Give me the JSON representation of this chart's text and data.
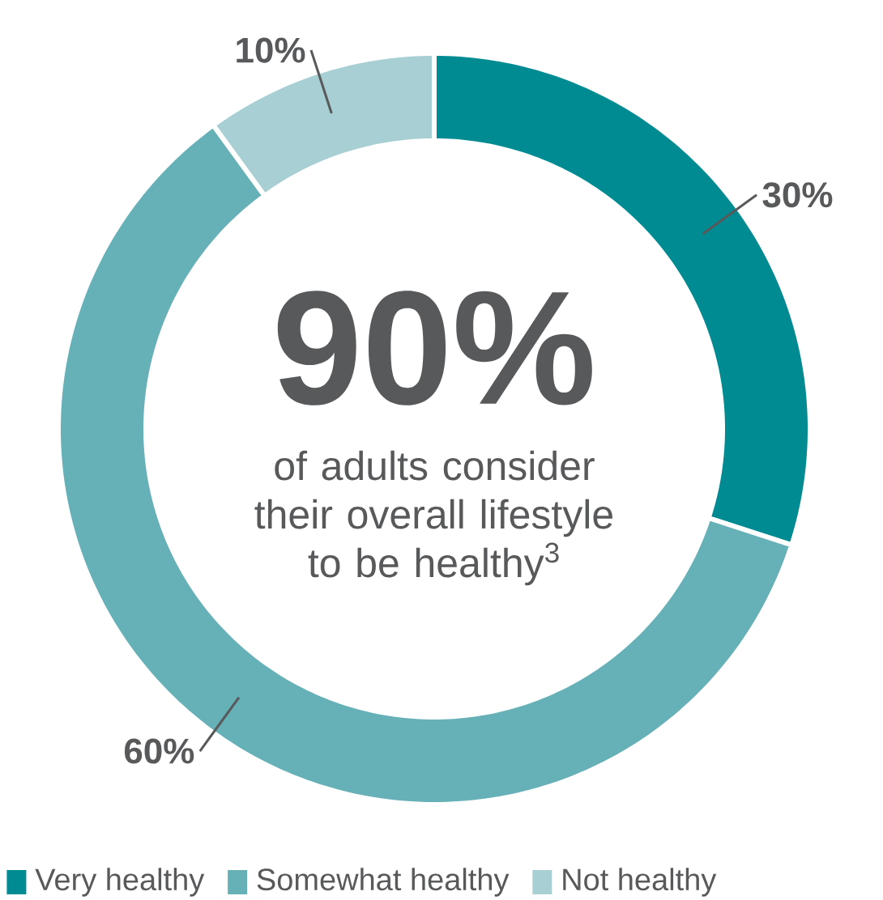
{
  "chart_data": {
    "type": "donut",
    "categories": [
      "Very healthy",
      "Somewhat healthy",
      "Not healthy"
    ],
    "values": [
      30,
      60,
      10
    ],
    "colors": [
      "#008b92",
      "#66b0b7",
      "#a8cfd3"
    ],
    "value_labels": [
      "30%",
      "60%",
      "10%"
    ],
    "annotations": [
      "90%",
      "of adults consider their overall lifestyle to be healthy$^{3}$"
    ],
    "legend": "bottom"
  }
}
